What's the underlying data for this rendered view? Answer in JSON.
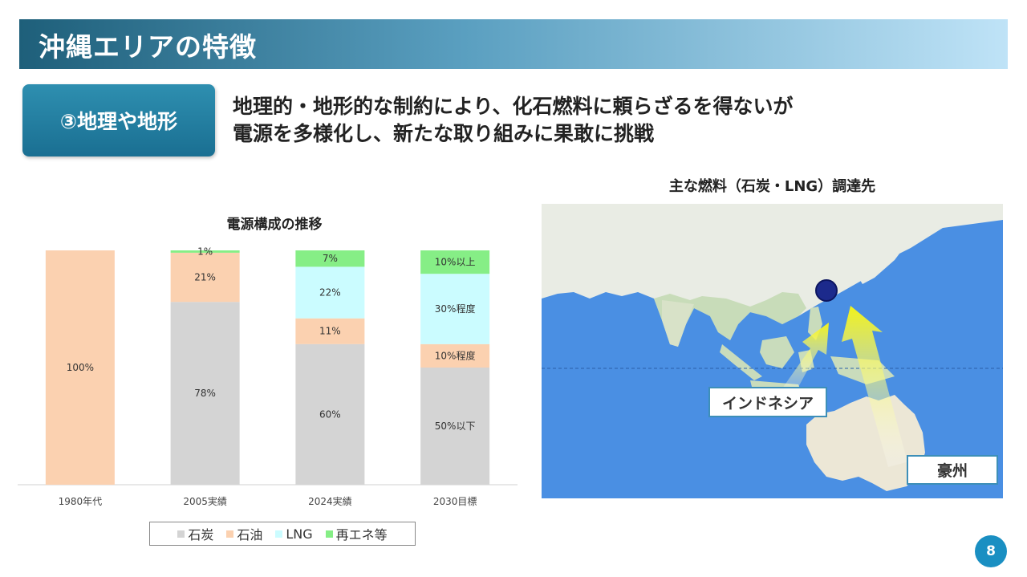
{
  "header": {
    "title": "沖縄エリアの特徴"
  },
  "section_badge": {
    "label": "③地理や地形"
  },
  "headline": {
    "line1": "地理的・地形的な制約により、化石燃料に頼らざるを得ないが",
    "line2": "電源を多様化し、新たな取り組みに果敢に挑戦"
  },
  "chart_data": {
    "type": "bar",
    "stacked": true,
    "title": "電源構成の推移",
    "categories": [
      "1980年代",
      "2005実績",
      "2024実績",
      "2030目標"
    ],
    "series": [
      {
        "name": "石炭",
        "color": "#d4d4d4",
        "values": [
          0,
          78,
          60,
          50
        ],
        "labels": [
          "",
          "78%",
          "60%",
          "50%以下"
        ]
      },
      {
        "name": "石油",
        "color": "#fbd1b0",
        "values": [
          100,
          21,
          11,
          10
        ],
        "labels": [
          "100%",
          "21%",
          "11%",
          "10%程度"
        ]
      },
      {
        "name": "LNG",
        "color": "#cbfcff",
        "values": [
          0,
          0,
          22,
          30
        ],
        "labels": [
          "",
          "",
          "22%",
          "30%程度"
        ]
      },
      {
        "name": "再エネ等",
        "color": "#86ee86",
        "values": [
          0,
          1,
          7,
          10
        ],
        "labels": [
          "",
          "1%",
          "7%",
          "10%以上"
        ]
      }
    ],
    "ylim": [
      0,
      100
    ],
    "grid": false,
    "legend_position": "bottom"
  },
  "map_section": {
    "title": "主な燃料（石炭・LNG）調達先",
    "callouts": {
      "indonesia": "インドネシア",
      "australia": "豪州"
    },
    "colors": {
      "ocean": "#4a8fe3",
      "land": "#e9ece4",
      "arrow": "#f2f21a",
      "marker": "#1c2a8c"
    }
  },
  "page_number": "8"
}
